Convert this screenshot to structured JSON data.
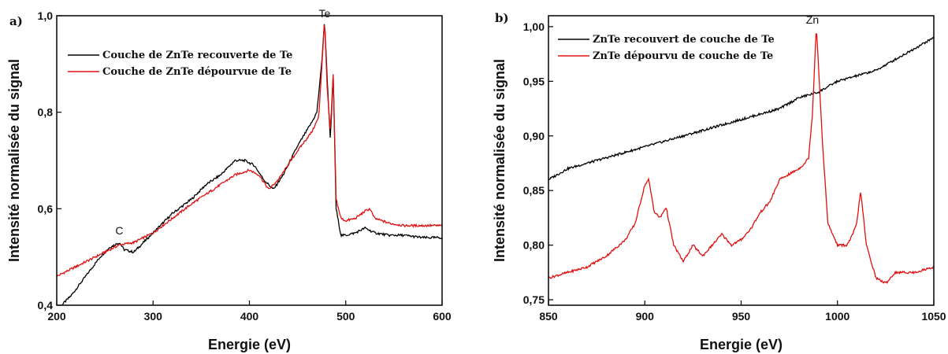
{
  "chart_data": [
    {
      "type": "line",
      "panel_label": "a)",
      "xlabel": "Energie (eV)",
      "ylabel": "Intensité normalisée du signal",
      "xlim": [
        200,
        600
      ],
      "ylim": [
        0.4,
        1.0
      ],
      "xticks": [
        200,
        300,
        400,
        500,
        600
      ],
      "xtick_labels": [
        "200",
        "300",
        "400",
        "500",
        "600"
      ],
      "yticks": [
        0.4,
        0.6,
        0.8,
        1.0
      ],
      "ytick_labels": [
        "0,4",
        "0,6",
        "0,8",
        "1,0"
      ],
      "legend_position": "top-left",
      "annotations": [
        {
          "text": "C",
          "x": 265,
          "y": 0.54
        },
        {
          "text": "Te",
          "x": 478,
          "y": 0.99
        }
      ],
      "series": [
        {
          "name": "Couche de ZnTe recouverte de Te",
          "color": "#000000",
          "x": [
            200,
            215,
            230,
            245,
            255,
            265,
            270,
            280,
            300,
            320,
            340,
            355,
            370,
            385,
            395,
            405,
            415,
            425,
            435,
            450,
            465,
            470,
            475,
            478,
            481,
            484,
            487,
            490,
            495,
            500,
            510,
            520,
            530,
            545,
            560,
            580,
            600
          ],
          "y": [
            0.39,
            0.42,
            0.46,
            0.5,
            0.52,
            0.53,
            0.515,
            0.51,
            0.55,
            0.59,
            0.62,
            0.65,
            0.67,
            0.7,
            0.7,
            0.69,
            0.66,
            0.64,
            0.67,
            0.73,
            0.78,
            0.8,
            0.9,
            0.99,
            0.86,
            0.74,
            0.88,
            0.6,
            0.545,
            0.545,
            0.55,
            0.56,
            0.55,
            0.545,
            0.545,
            0.54,
            0.54
          ]
        },
        {
          "name": "Couche de ZnTe dépourvue de Te",
          "color": "#e01010",
          "x": [
            200,
            220,
            240,
            255,
            265,
            280,
            300,
            320,
            340,
            355,
            370,
            385,
            400,
            410,
            420,
            430,
            450,
            465,
            472,
            478,
            481,
            484,
            487,
            490,
            495,
            500,
            510,
            520,
            525,
            530,
            545,
            560,
            580,
            600
          ],
          "y": [
            0.46,
            0.48,
            0.5,
            0.515,
            0.525,
            0.53,
            0.55,
            0.58,
            0.61,
            0.63,
            0.65,
            0.67,
            0.68,
            0.67,
            0.64,
            0.66,
            0.72,
            0.76,
            0.79,
            0.99,
            0.84,
            0.76,
            0.88,
            0.62,
            0.58,
            0.575,
            0.58,
            0.595,
            0.6,
            0.58,
            0.57,
            0.565,
            0.565,
            0.565
          ]
        }
      ]
    },
    {
      "type": "line",
      "panel_label": "b)",
      "xlabel": "Energie (eV)",
      "ylabel": "Intensité normalisée du signal",
      "xlim": [
        850,
        1050
      ],
      "ylim": [
        0.745,
        1.01
      ],
      "xticks": [
        850,
        900,
        950,
        1000,
        1050
      ],
      "xtick_labels": [
        "850",
        "900",
        "950",
        "1000",
        "1050"
      ],
      "yticks": [
        0.75,
        0.8,
        0.85,
        0.9,
        0.95,
        1.0
      ],
      "ytick_labels": [
        "0,75",
        "0,80",
        "0,85",
        "0,90",
        "0,95",
        "1,00"
      ],
      "legend_position": "top-left",
      "annotations": [
        {
          "text": "Zn",
          "x": 987,
          "y": 1.0
        }
      ],
      "series": [
        {
          "name": "ZnTe recouvert de couche de Te",
          "color": "#000000",
          "x": [
            850,
            860,
            870,
            880,
            890,
            900,
            910,
            920,
            930,
            940,
            950,
            960,
            970,
            980,
            990,
            1000,
            1010,
            1020,
            1030,
            1040,
            1050
          ],
          "y": [
            0.86,
            0.87,
            0.875,
            0.88,
            0.885,
            0.89,
            0.895,
            0.9,
            0.905,
            0.91,
            0.915,
            0.92,
            0.925,
            0.935,
            0.94,
            0.95,
            0.955,
            0.96,
            0.97,
            0.98,
            0.99
          ]
        },
        {
          "name": "ZnTe dépourvu de couche de Te",
          "color": "#e01010",
          "x": [
            850,
            860,
            870,
            880,
            890,
            895,
            900,
            902,
            905,
            908,
            911,
            915,
            920,
            925,
            930,
            935,
            940,
            945,
            950,
            955,
            960,
            965,
            970,
            975,
            980,
            983,
            985,
            987,
            989,
            990,
            992,
            995,
            1000,
            1005,
            1008,
            1010,
            1012,
            1015,
            1020,
            1025,
            1030,
            1040,
            1050
          ],
          "y": [
            0.77,
            0.775,
            0.78,
            0.79,
            0.805,
            0.82,
            0.855,
            0.86,
            0.83,
            0.825,
            0.835,
            0.8,
            0.785,
            0.8,
            0.79,
            0.8,
            0.81,
            0.8,
            0.805,
            0.815,
            0.83,
            0.84,
            0.86,
            0.865,
            0.87,
            0.875,
            0.88,
            0.92,
            1.0,
            0.97,
            0.9,
            0.82,
            0.8,
            0.8,
            0.81,
            0.82,
            0.85,
            0.8,
            0.77,
            0.765,
            0.775,
            0.775,
            0.78
          ]
        }
      ]
    }
  ]
}
